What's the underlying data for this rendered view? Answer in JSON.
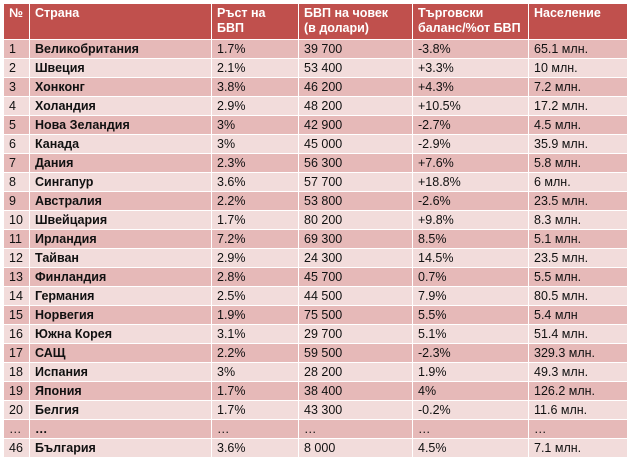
{
  "table": {
    "headers": {
      "rank": "№",
      "country": "Страна",
      "gdp_growth": "Ръст на БВП",
      "gdp_per_capita_line1": "БВП на човек",
      "gdp_per_capita_line2": "(в долари)",
      "trade_balance_line1": "Търговски",
      "trade_balance_line2": "баланс/%от БВП",
      "population": "Население"
    },
    "rows": [
      {
        "rank": "1",
        "country": "Великобритания",
        "gdp_growth": "1.7%",
        "gdp_per_capita": "39 700",
        "trade_balance": "-3.8%",
        "population": "65.1 млн."
      },
      {
        "rank": "2",
        "country": "Швеция",
        "gdp_growth": "2.1%",
        "gdp_per_capita": "53 400",
        "trade_balance": "+3.3%",
        "population": "10 млн."
      },
      {
        "rank": "3",
        "country": "Хонконг",
        "gdp_growth": "3.8%",
        "gdp_per_capita": "46 200",
        "trade_balance": "+4.3%",
        "population": "7.2 млн."
      },
      {
        "rank": "4",
        "country": "Холандия",
        "gdp_growth": "2.9%",
        "gdp_per_capita": "48 200",
        "trade_balance": "+10.5%",
        "population": "17.2 млн."
      },
      {
        "rank": "5",
        "country": "Нова Зеландия",
        "gdp_growth": "3%",
        "gdp_per_capita": "42 900",
        "trade_balance": "-2.7%",
        "population": "4.5 млн."
      },
      {
        "rank": "6",
        "country": "Канада",
        "gdp_growth": "3%",
        "gdp_per_capita": "45 000",
        "trade_balance": "-2.9%",
        "population": "35.9 млн."
      },
      {
        "rank": "7",
        "country": "Дания",
        "gdp_growth": "2.3%",
        "gdp_per_capita": "56 300",
        "trade_balance": "+7.6%",
        "population": "5.8 млн."
      },
      {
        "rank": "8",
        "country": "Сингапур",
        "gdp_growth": "3.6%",
        "gdp_per_capita": "57 700",
        "trade_balance": "+18.8%",
        "population": "6 млн."
      },
      {
        "rank": "9",
        "country": "Австралия",
        "gdp_growth": "2.2%",
        "gdp_per_capita": "53 800",
        "trade_balance": "-2.6%",
        "population": "23.5 млн."
      },
      {
        "rank": "10",
        "country": "Швейцария",
        "gdp_growth": "1.7%",
        "gdp_per_capita": "80 200",
        "trade_balance": "+9.8%",
        "population": "8.3 млн."
      },
      {
        "rank": "11",
        "country": "Ирландия",
        "gdp_growth": "7.2%",
        "gdp_per_capita": "69 300",
        "trade_balance": "8.5%",
        "population": "5.1 млн."
      },
      {
        "rank": "12",
        "country": "Тайван",
        "gdp_growth": "2.9%",
        "gdp_per_capita": "24 300",
        "trade_balance": "14.5%",
        "population": "23.5 млн."
      },
      {
        "rank": "13",
        "country": "Финландия",
        "gdp_growth": "2.8%",
        "gdp_per_capita": "45 700",
        "trade_balance": "0.7%",
        "population": "5.5 млн."
      },
      {
        "rank": "14",
        "country": "Германия",
        "gdp_growth": "2.5%",
        "gdp_per_capita": "44 500",
        "trade_balance": "7.9%",
        "population": "80.5 млн."
      },
      {
        "rank": "15",
        "country": "Норвегия",
        "gdp_growth": "1.9%",
        "gdp_per_capita": "75 500",
        "trade_balance": "5.5%",
        "population": "5.4 млн"
      },
      {
        "rank": "16",
        "country": "Южна Корея",
        "gdp_growth": "3.1%",
        "gdp_per_capita": "29 700",
        "trade_balance": "5.1%",
        "population": "51.4 млн."
      },
      {
        "rank": "17",
        "country": "САЩ",
        "gdp_growth": "2.2%",
        "gdp_per_capita": "59 500",
        "trade_balance": "-2.3%",
        "population": "329.3 млн."
      },
      {
        "rank": "18",
        "country": "Испания",
        "gdp_growth": "3%",
        "gdp_per_capita": "28 200",
        "trade_balance": "1.9%",
        "population": "49.3 млн."
      },
      {
        "rank": "19",
        "country": "Япония",
        "gdp_growth": "1.7%",
        "gdp_per_capita": "38 400",
        "trade_balance": "4%",
        "population": "126.2 млн."
      },
      {
        "rank": "20",
        "country": "Белгия",
        "gdp_growth": "1.7%",
        "gdp_per_capita": "43 300",
        "trade_balance": "-0.2%",
        "population": "11.6 млн."
      },
      {
        "rank": "…",
        "country": "…",
        "gdp_growth": "…",
        "gdp_per_capita": "…",
        "trade_balance": "…",
        "population": "…"
      },
      {
        "rank": "46",
        "country": "България",
        "gdp_growth": "3.6%",
        "gdp_per_capita": "8 000",
        "trade_balance": "4.5%",
        "population": "7.1 млн."
      }
    ]
  },
  "colors": {
    "header_bg": "#c0504d",
    "row_dark": "#e6b9b8",
    "row_light": "#f2dcdb"
  }
}
